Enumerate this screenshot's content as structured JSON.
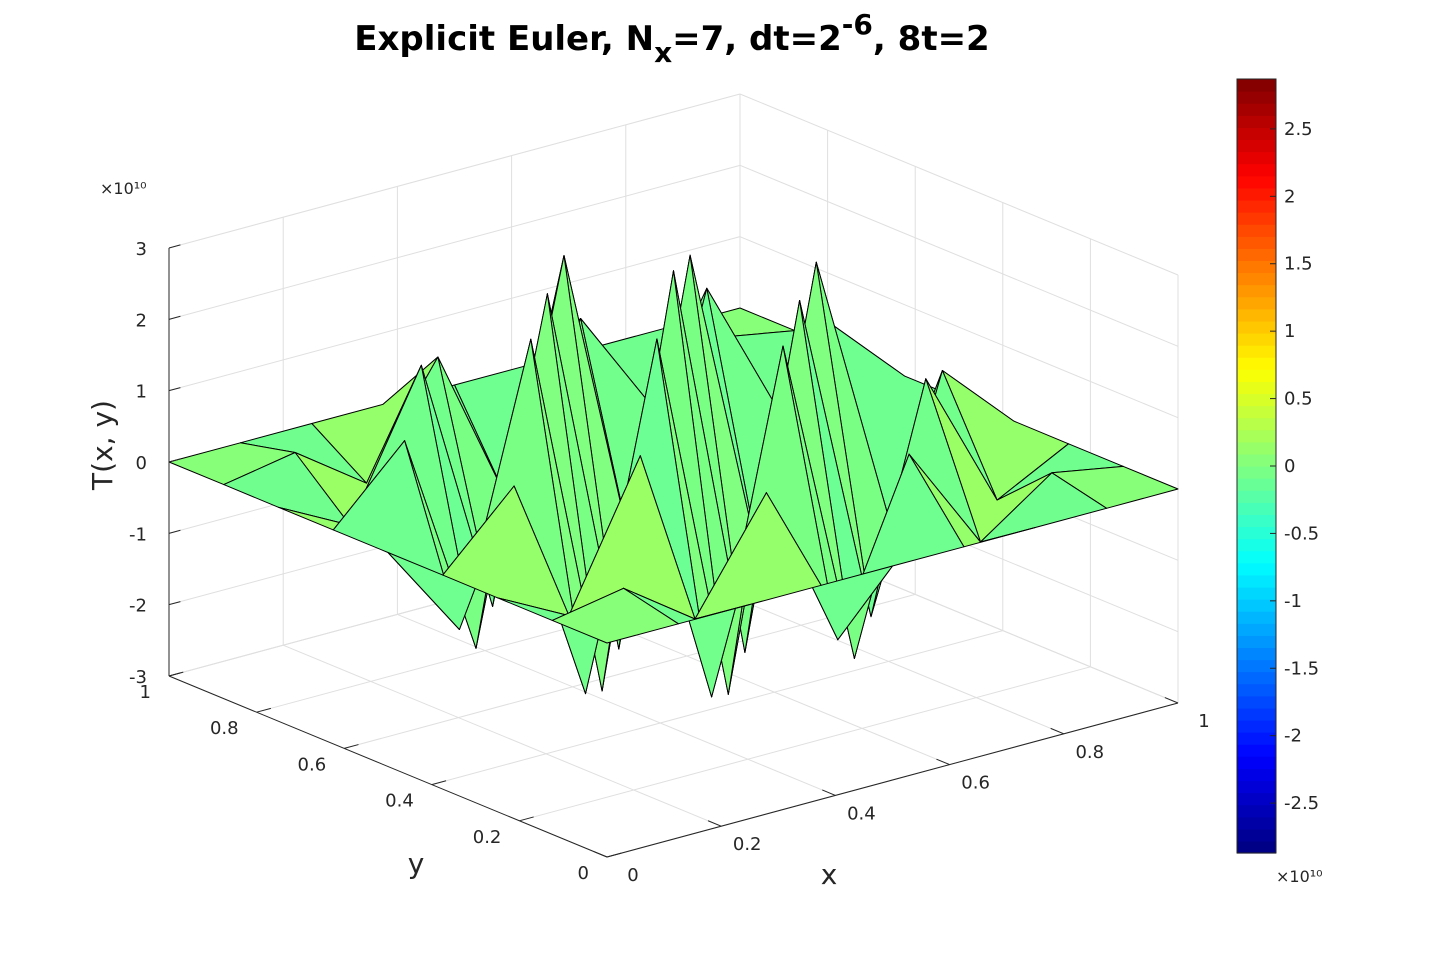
{
  "chart_data": {
    "type": "surface",
    "title": {
      "parts": [
        {
          "text": "Explicit Euler, N",
          "shift": "none"
        },
        {
          "text": "x",
          "shift": "sub"
        },
        {
          "text": "=7, dt=2",
          "shift": "none"
        },
        {
          "text": "-6",
          "shift": "super"
        },
        {
          "text": ", 8t=2",
          "shift": "none"
        }
      ]
    },
    "xlabel": "x",
    "ylabel": "y",
    "zlabel": "T(x, y)",
    "xlim": [
      0,
      1
    ],
    "ylim": [
      0,
      1
    ],
    "zlim": [
      -3,
      3
    ],
    "x_ticks": [
      "0",
      "0.2",
      "0.4",
      "0.6",
      "0.8",
      "1"
    ],
    "y_ticks": [
      "0",
      "0.2",
      "0.4",
      "0.6",
      "0.8",
      "1"
    ],
    "z_ticks": [
      "-3",
      "-2",
      "-1",
      "0",
      "1",
      "2",
      "3"
    ],
    "z_exponent": "×10¹⁰",
    "grid": true,
    "colormap": "jet",
    "colorbar": {
      "location": "right",
      "limits": [
        -2.87,
        2.87
      ],
      "ticks": [
        "-2.5",
        "-2",
        "-1.5",
        "-1",
        "-0.5",
        "0",
        "0.5",
        "1",
        "1.5",
        "2",
        "2.5"
      ],
      "exponent": "×10¹⁰"
    },
    "grid_x": [
      0,
      0.125,
      0.25,
      0.375,
      0.5,
      0.625,
      0.75,
      0.875,
      1
    ],
    "grid_y": [
      0,
      0.125,
      0.25,
      0.375,
      0.5,
      0.625,
      0.75,
      0.875,
      1
    ],
    "z_scale": 10000000000,
    "z_values": [
      [
        0,
        0,
        0,
        0,
        0,
        0,
        0,
        0,
        0
      ],
      [
        0,
        0.18,
        -0.52,
        0.98,
        -1.35,
        0.98,
        -0.52,
        0.18,
        0
      ],
      [
        0,
        -0.52,
        1.45,
        -2.2,
        2.45,
        -2.2,
        1.45,
        -0.52,
        0
      ],
      [
        0,
        0.98,
        -2.2,
        2.5,
        -2.75,
        2.5,
        -2.2,
        0.98,
        0
      ],
      [
        0,
        -1.35,
        2.45,
        -2.75,
        2.87,
        -2.75,
        2.45,
        -1.35,
        0
      ],
      [
        0,
        0.98,
        -2.2,
        2.5,
        -2.75,
        2.5,
        -2.2,
        0.98,
        0
      ],
      [
        0,
        -0.52,
        1.45,
        -2.2,
        2.45,
        -2.2,
        1.45,
        -0.52,
        0
      ],
      [
        0,
        0.18,
        -0.52,
        0.98,
        -1.35,
        0.98,
        -0.52,
        0.18,
        0
      ],
      [
        0,
        0,
        0,
        0,
        0,
        0,
        0,
        0,
        0
      ]
    ]
  },
  "colors": {
    "background": "#ffffff",
    "axes_line": "#262626",
    "grid_line": "#dfdfdf",
    "edge": "#000000"
  }
}
